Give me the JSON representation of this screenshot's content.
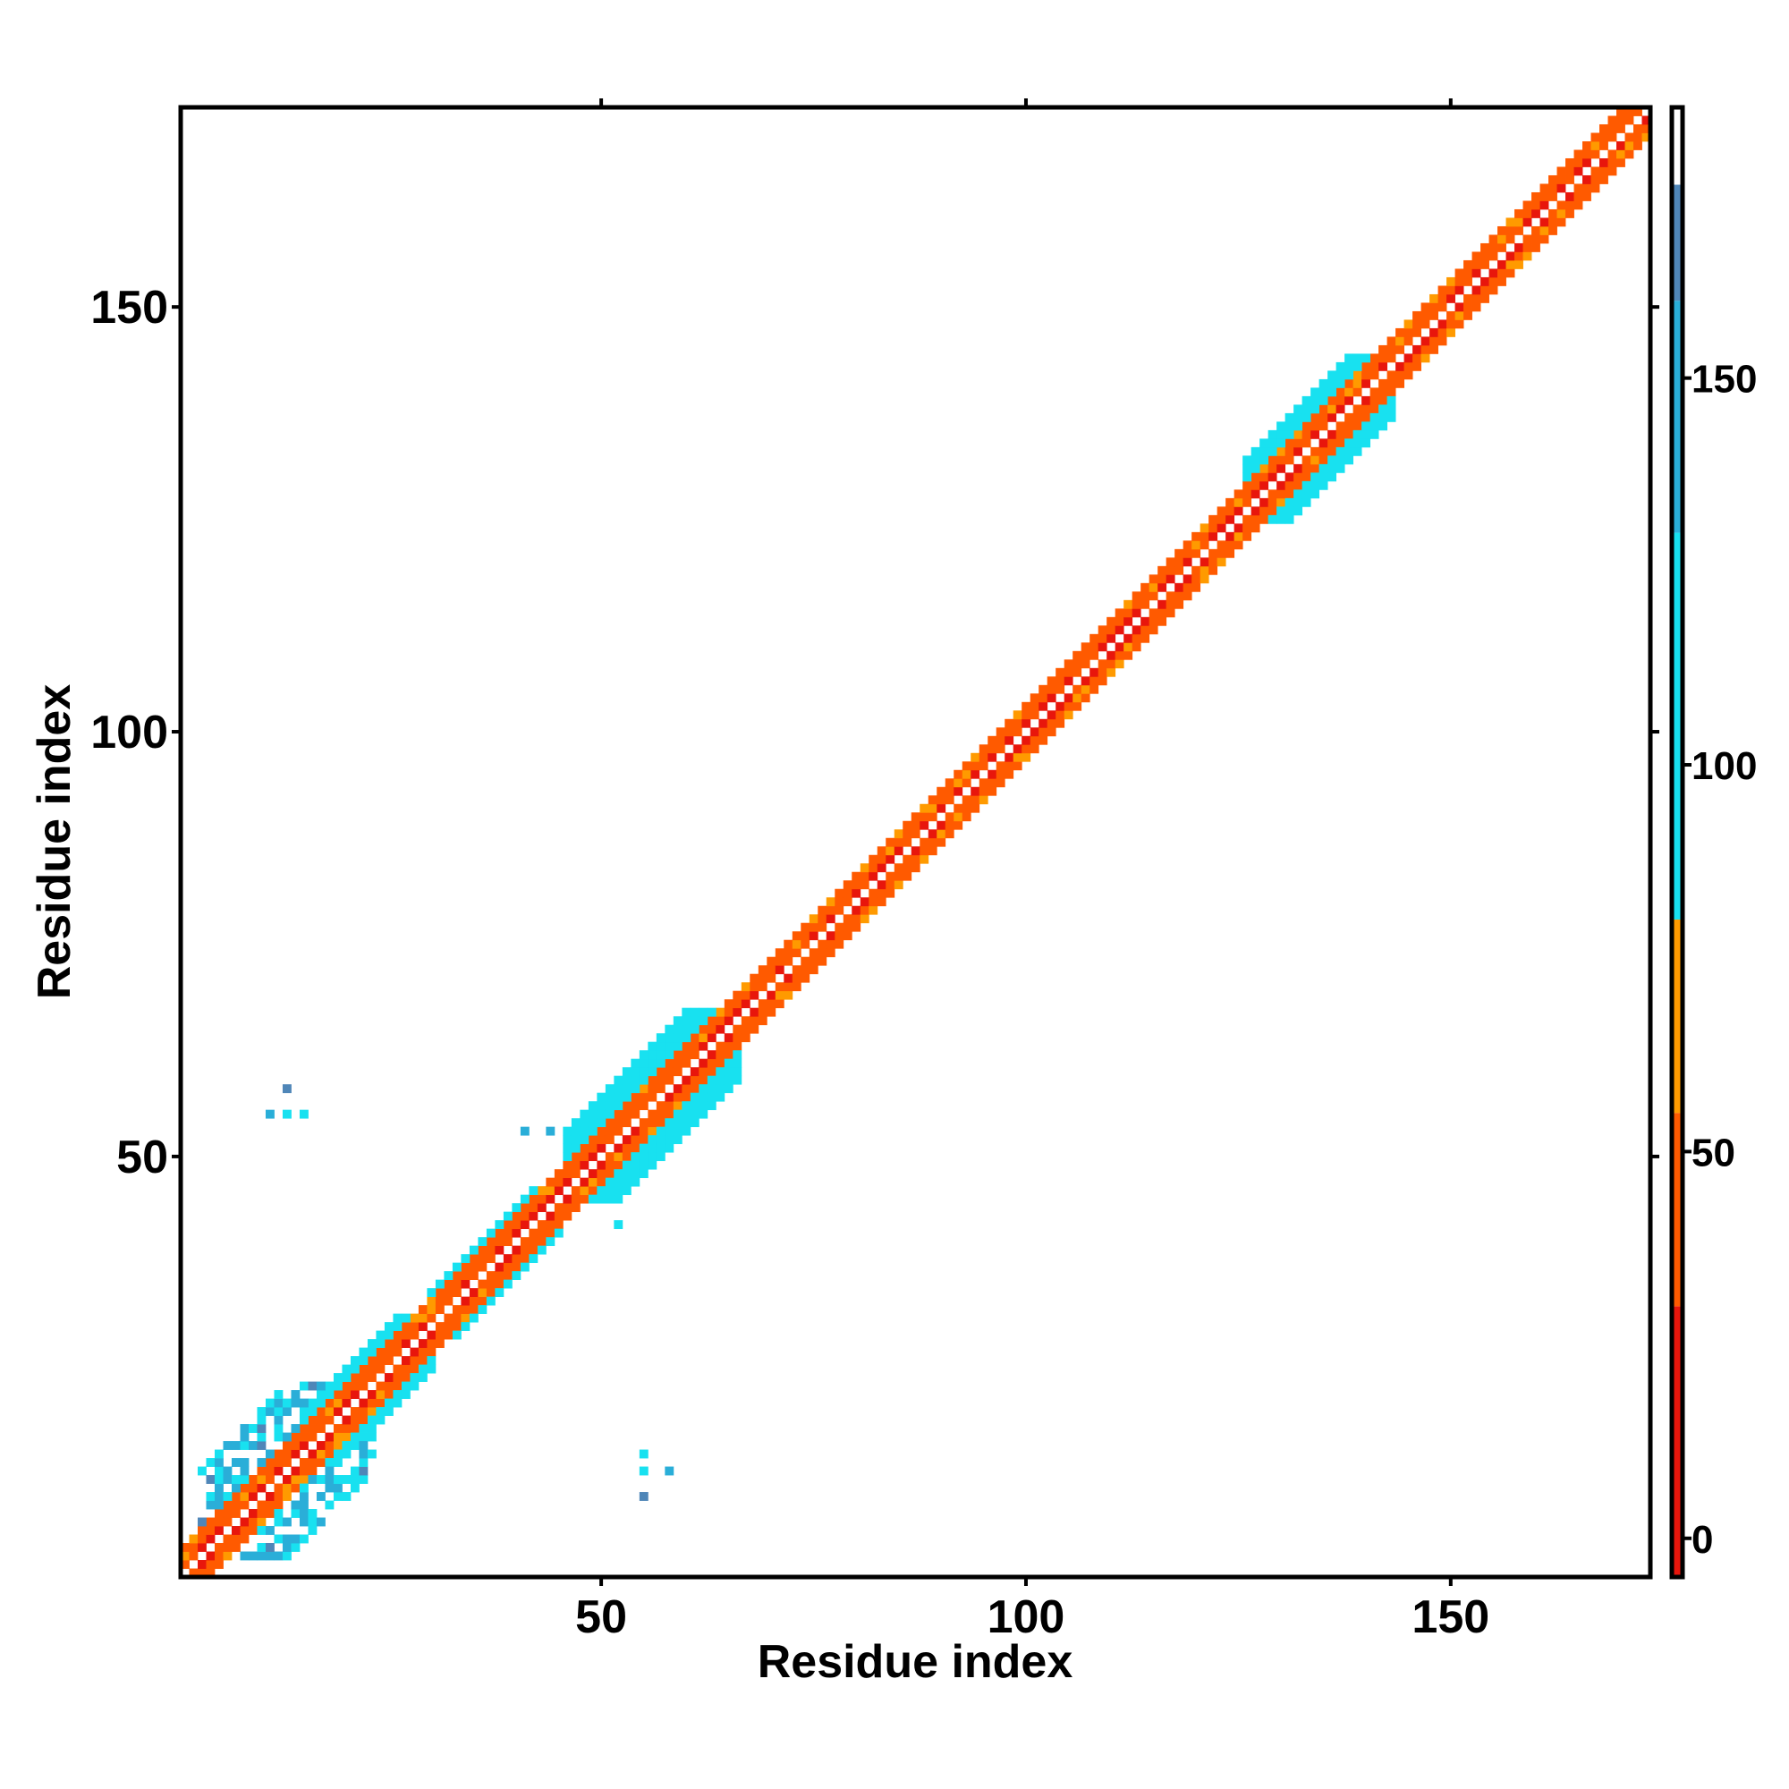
{
  "chart_data": {
    "type": "heatmap",
    "title": "",
    "xlabel": "Residue index",
    "ylabel": "Residue index",
    "x_range": [
      1,
      173
    ],
    "y_range": [
      1,
      173
    ],
    "x_ticks": [
      50,
      100,
      150
    ],
    "y_ticks": [
      50,
      100,
      150
    ],
    "colorbar": {
      "range": [
        -5,
        185
      ],
      "ticks": [
        0,
        50,
        100,
        150
      ],
      "stops": [
        {
          "from": -5,
          "to": 30,
          "color": "#e8160c"
        },
        {
          "from": 30,
          "to": 55,
          "color": "#ff5a00"
        },
        {
          "from": 55,
          "to": 80,
          "color": "#ff9a00"
        },
        {
          "from": 80,
          "to": 130,
          "color": "#18e1f0"
        },
        {
          "from": 130,
          "to": 160,
          "color": "#2aaed8"
        },
        {
          "from": 160,
          "to": 175,
          "color": "#4f86b8"
        },
        {
          "from": 175,
          "to": 185,
          "color": "#ffffff"
        }
      ]
    },
    "diagonal_bands": [
      {
        "start": 1,
        "end": 173,
        "halfwidth": 3,
        "inner_value": 30,
        "outer_value": 60
      },
      {
        "start": 46,
        "end": 66,
        "halfwidth": 7,
        "inner_value": 40,
        "outer_value": 100
      },
      {
        "start": 126,
        "end": 143,
        "halfwidth": 6,
        "inner_value": 20,
        "outer_value": 95
      },
      {
        "start": 15,
        "end": 30,
        "halfwidth": 5,
        "inner_value": 30,
        "outer_value": 100
      },
      {
        "start": 30,
        "end": 45,
        "halfwidth": 4,
        "inner_value": 35,
        "outer_value": 100
      }
    ],
    "cluster_region": {
      "x": [
        3,
        23
      ],
      "y": [
        3,
        23
      ],
      "value": 105
    },
    "scattered_cells": [
      {
        "x": 13,
        "y": 58,
        "value": 165
      },
      {
        "x": 11,
        "y": 55,
        "value": 150
      },
      {
        "x": 13,
        "y": 55,
        "value": 110
      },
      {
        "x": 15,
        "y": 55,
        "value": 100
      },
      {
        "x": 41,
        "y": 53,
        "value": 150
      },
      {
        "x": 44,
        "y": 53,
        "value": 140
      },
      {
        "x": 51,
        "y": 47,
        "value": 110
      },
      {
        "x": 52,
        "y": 42,
        "value": 100
      },
      {
        "x": 55,
        "y": 15,
        "value": 90
      },
      {
        "x": 55,
        "y": 13,
        "value": 120
      },
      {
        "x": 58,
        "y": 13,
        "value": 130
      },
      {
        "x": 55,
        "y": 10,
        "value": 160
      }
    ]
  }
}
